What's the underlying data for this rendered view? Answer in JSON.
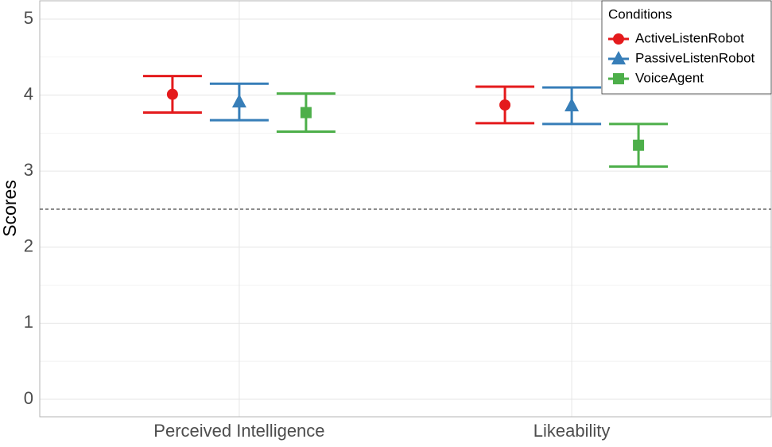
{
  "chart_data": {
    "type": "errorbar",
    "y_label": "Scores",
    "categories": [
      "Perceived Intelligence",
      "Likeability"
    ],
    "series": [
      {
        "name": "ActiveListenRobot",
        "color": "#e41a1c",
        "shape": "circle",
        "values": [
          4.01,
          3.87
        ],
        "errors": [
          0.24,
          0.24
        ]
      },
      {
        "name": "PassiveListenRobot",
        "color": "#377eb8",
        "shape": "triangle",
        "values": [
          3.91,
          3.86
        ],
        "errors": [
          0.24,
          0.24
        ]
      },
      {
        "name": "VoiceAgent",
        "color": "#4daf4a",
        "shape": "square",
        "values": [
          3.77,
          3.34
        ],
        "errors": [
          0.25,
          0.28
        ]
      }
    ],
    "ylim": [
      -0.23,
      5.24
    ],
    "yticks": [
      0,
      1,
      2,
      3,
      4,
      5
    ],
    "grid": true,
    "reference_line": 2.5,
    "legend_title": "Conditions",
    "legend_position": "top-right"
  }
}
